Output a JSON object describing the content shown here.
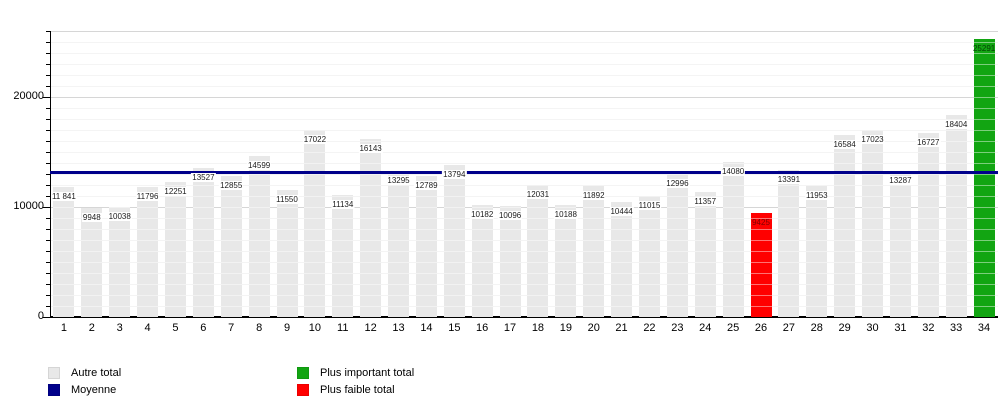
{
  "chart_data": {
    "type": "bar",
    "title": "",
    "xlabel": "",
    "ylabel": "",
    "categories": [
      "1",
      "2",
      "3",
      "4",
      "5",
      "6",
      "7",
      "8",
      "9",
      "10",
      "11",
      "12",
      "13",
      "14",
      "15",
      "16",
      "17",
      "18",
      "19",
      "20",
      "21",
      "22",
      "23",
      "24",
      "25",
      "26",
      "27",
      "28",
      "29",
      "30",
      "31",
      "32",
      "33",
      "34"
    ],
    "series": [
      {
        "name": "Total",
        "values": [
          11841,
          9948,
          10038,
          11796,
          12251,
          13527,
          12855,
          14599,
          11550,
          17022,
          11134,
          16143,
          13295,
          12789,
          13794,
          10182,
          10096,
          12031,
          10188,
          11892,
          10444,
          11015,
          12996,
          11357,
          14080,
          9425,
          13391,
          11953,
          16584,
          17023,
          13287,
          16727,
          18404,
          25291
        ]
      }
    ],
    "value_labels": [
      "11 841",
      "9948",
      "10038",
      "11796",
      "12251",
      "13527",
      "12855",
      "14599",
      "11550",
      "17022",
      "11134",
      "16143",
      "13295",
      "12789",
      "13794",
      "10182",
      "10096",
      "12031",
      "10188",
      "11892",
      "10444",
      "11015",
      "12996",
      "11357",
      "14080",
      "9425",
      "13391",
      "11953",
      "16584",
      "17023",
      "13287",
      "16727",
      "18404",
      "25291"
    ],
    "min_bar_category": "26",
    "min_bar_index": 26,
    "max_bar_category": "34",
    "max_bar_index": 34,
    "average": {
      "label": "Moyenne",
      "value": 13204
    },
    "ylim": [
      0,
      26000
    ],
    "yticks": [
      0,
      10000,
      20000
    ],
    "minor_step": 1000,
    "grid": true,
    "legend_position": "bottom",
    "colors": {
      "default_bar": "#E8E8E8",
      "min_bar": "#FF0000",
      "max_bar": "#12A512",
      "average_line": "#00008B",
      "axis": "#000000"
    },
    "legend": {
      "items": [
        {
          "label": "Autre total",
          "color": "#E8E8E8"
        },
        {
          "label": "Moyenne",
          "color": "#00008B"
        },
        {
          "label": "Plus important total",
          "color": "#12A512"
        },
        {
          "label": "Plus faible total",
          "color": "#FF0000"
        }
      ]
    }
  }
}
